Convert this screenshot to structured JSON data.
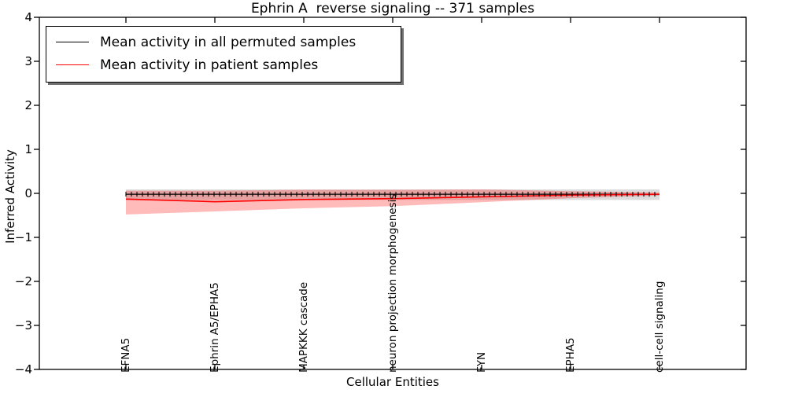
{
  "chart_data": {
    "type": "line",
    "title": "Ephrin A  reverse signaling -- 371 samples",
    "xlabel": "Cellular Entities",
    "ylabel": "Inferred Activity",
    "ylim": [
      -4,
      4
    ],
    "yticks": [
      4,
      3,
      2,
      1,
      0,
      -1,
      -2,
      -3,
      -4
    ],
    "grid": false,
    "legend_position": "upper left",
    "categories": [
      "EFNA5",
      "Ephrin A5/EPHA5",
      "MAPKKK cascade",
      "neuron projection morphogenesis",
      "FYN",
      "EPHA5",
      "cell-cell signaling"
    ],
    "series": [
      {
        "name": "Mean activity in all permuted samples",
        "color": "#000000",
        "marker": "plus",
        "values": [
          -0.02,
          -0.02,
          -0.02,
          -0.02,
          -0.02,
          -0.02,
          -0.02
        ],
        "band_upper": [
          0.09,
          0.09,
          0.09,
          0.09,
          0.09,
          0.09,
          0.09
        ],
        "band_lower": [
          -0.15,
          -0.15,
          -0.15,
          -0.15,
          -0.15,
          -0.15,
          -0.15
        ],
        "band_fill": "rgba(128,128,128,0.28)"
      },
      {
        "name": "Mean activity in patient samples",
        "color": "#ff0000",
        "marker": "none",
        "values": [
          -0.13,
          -0.19,
          -0.14,
          -0.12,
          -0.08,
          -0.04,
          -0.02
        ],
        "band_upper": [
          0.06,
          0.06,
          0.08,
          0.08,
          0.09,
          0.05,
          0.02
        ],
        "band_lower": [
          -0.48,
          -0.41,
          -0.34,
          -0.29,
          -0.2,
          -0.11,
          -0.05
        ],
        "band_fill": "rgba(255,0,0,0.27)"
      }
    ]
  }
}
